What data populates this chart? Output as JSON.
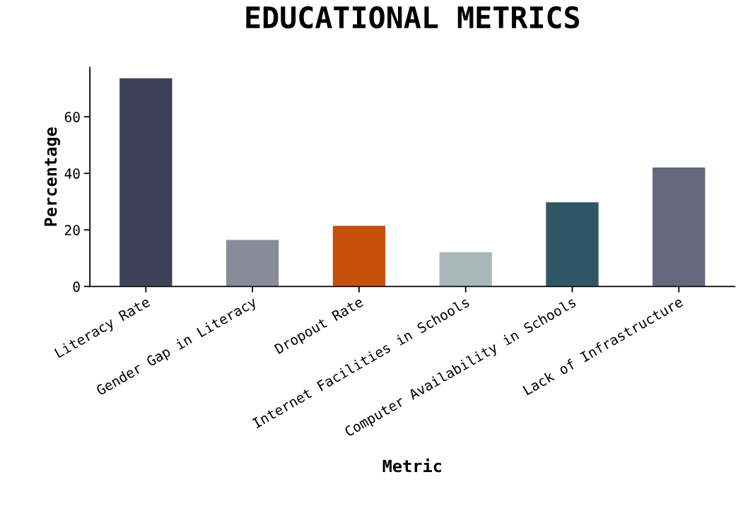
{
  "chart_data": {
    "type": "bar",
    "title": "EDUCATIONAL METRICS",
    "xlabel": "Metric",
    "ylabel": "Percentage",
    "categories": [
      "Literacy Rate",
      "Gender Gap in Literacy",
      "Dropout Rate",
      "Internet Facilities in Schools",
      "Computer Availability in Schools",
      "Lack of Infrastructure"
    ],
    "values": [
      73.8,
      16.6,
      21.6,
      12.3,
      29.9,
      42.2
    ],
    "colors": [
      "#3d4159",
      "#898b9b",
      "#c64f0d",
      "#a8b8ba",
      "#305765",
      "#63687e"
    ],
    "ylim": [
      0,
      77.5
    ],
    "yticks": [
      0,
      20,
      40,
      60
    ],
    "grid": false,
    "legend": false
  }
}
